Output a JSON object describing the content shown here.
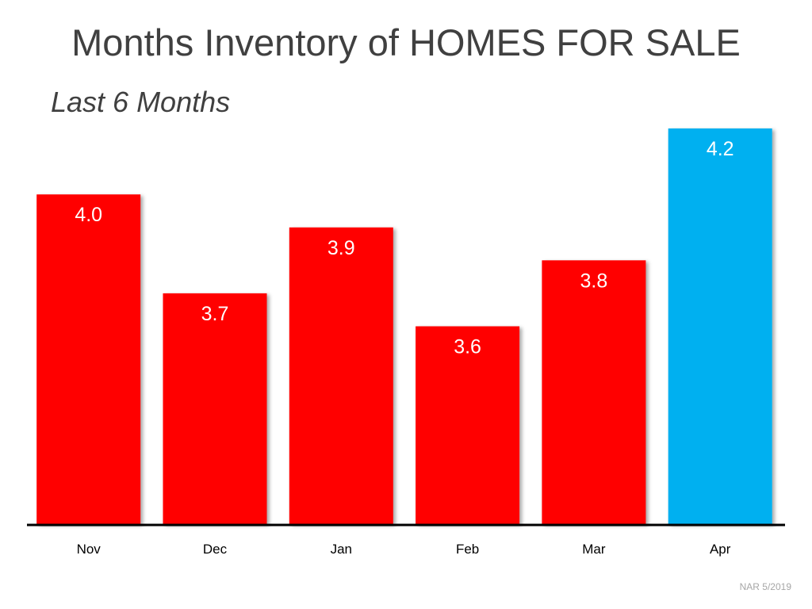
{
  "chart_data": {
    "type": "bar",
    "title": "Months Inventory of HOMES FOR SALE",
    "subtitle": "Last 6 Months",
    "categories": [
      "Nov",
      "Dec",
      "Jan",
      "Feb",
      "Mar",
      "Apr"
    ],
    "values": [
      4.0,
      3.7,
      3.9,
      3.6,
      3.8,
      4.2
    ],
    "value_labels": [
      "4.0",
      "3.7",
      "3.9",
      "3.6",
      "3.8",
      "4.2"
    ],
    "bar_colors": [
      "#ff0000",
      "#ff0000",
      "#ff0000",
      "#ff0000",
      "#ff0000",
      "#00b0f0"
    ],
    "ylim": [
      3.0,
      4.3
    ],
    "grid": false,
    "legend": "none",
    "xlabel": "",
    "ylabel": ""
  },
  "source_note": "NAR 5/2019",
  "colors": {
    "title_text": "#404040",
    "value_label_text": "#ffffff",
    "axis_line": "#000000",
    "tick_label_text": "#000000",
    "source_text": "#a6a6a6"
  }
}
